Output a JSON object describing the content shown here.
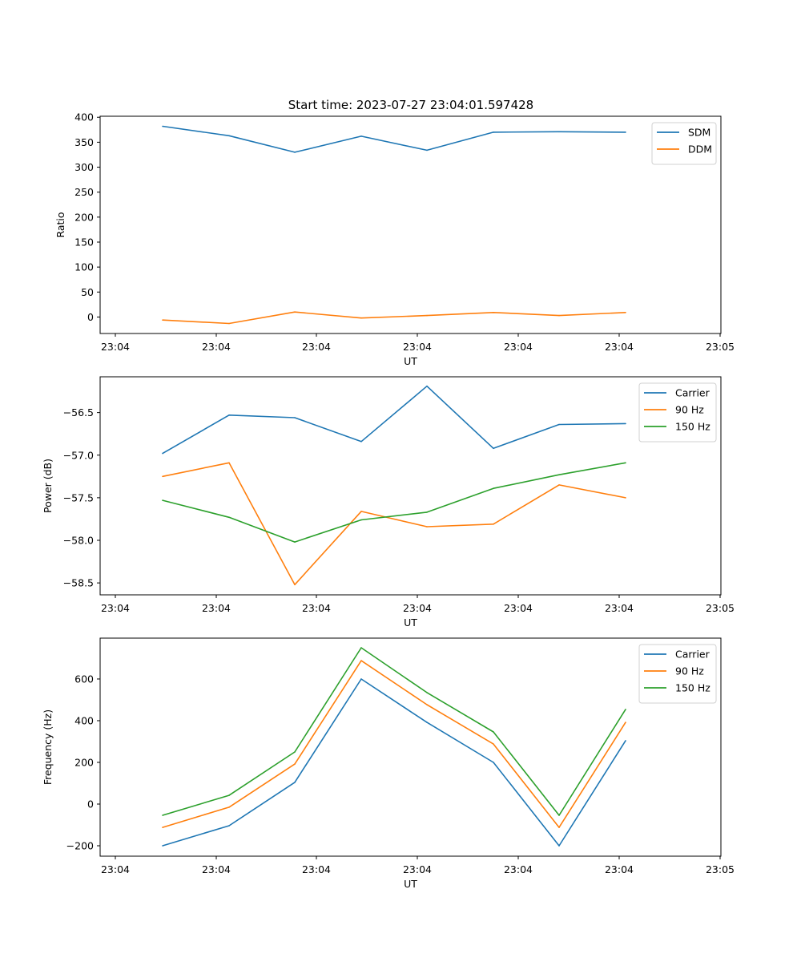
{
  "title": "Start time: 2023-07-27 23:04:01.597428",
  "chart_data": [
    {
      "type": "line",
      "title": "Start time: 2023-07-27 23:04:01.597428",
      "xlabel": "UT",
      "ylabel": "Ratio",
      "x_ticks": [
        "23:04",
        "23:04",
        "23:04",
        "23:04",
        "23:04",
        "23:04",
        "23:05"
      ],
      "y_ticks": [
        0,
        50,
        100,
        150,
        200,
        250,
        300,
        350,
        400
      ],
      "ylim": [
        -33,
        402
      ],
      "grid": false,
      "legend_position": "top-right",
      "series": [
        {
          "name": "SDM",
          "color": "#1f77b4",
          "values": [
            382,
            363,
            330,
            362,
            334,
            370,
            371,
            370
          ]
        },
        {
          "name": "DDM",
          "color": "#ff7f0e",
          "values": [
            -6,
            -13,
            10,
            -2,
            3,
            9,
            3,
            9
          ]
        }
      ]
    },
    {
      "type": "line",
      "title": "",
      "xlabel": "UT",
      "ylabel": "Power (dB)",
      "x_ticks": [
        "23:04",
        "23:04",
        "23:04",
        "23:04",
        "23:04",
        "23:04",
        "23:05"
      ],
      "y_ticks": [
        -58.5,
        -58.0,
        -57.5,
        -57.0,
        -56.5
      ],
      "y_tick_labels": [
        "−58.5",
        "−58.0",
        "−57.5",
        "−57.0",
        "−56.5"
      ],
      "ylim": [
        -58.64,
        -56.08
      ],
      "grid": false,
      "legend_position": "top-right",
      "series": [
        {
          "name": "Carrier",
          "color": "#1f77b4",
          "values": [
            -56.98,
            -56.53,
            -56.56,
            -56.84,
            -56.19,
            -56.92,
            -56.64,
            -56.63
          ]
        },
        {
          "name": "90 Hz",
          "color": "#ff7f0e",
          "values": [
            -57.25,
            -57.09,
            -58.52,
            -57.66,
            -57.84,
            -57.81,
            -57.35,
            -57.5
          ]
        },
        {
          "name": "150 Hz",
          "color": "#2ca02c",
          "values": [
            -57.53,
            -57.73,
            -58.02,
            -57.76,
            -57.67,
            -57.39,
            -57.23,
            -57.09
          ]
        }
      ]
    },
    {
      "type": "line",
      "title": "",
      "xlabel": "UT",
      "ylabel": "Frequency (Hz)",
      "x_ticks": [
        "23:04",
        "23:04",
        "23:04",
        "23:04",
        "23:04",
        "23:04",
        "23:05"
      ],
      "y_ticks": [
        -200,
        0,
        200,
        400,
        600
      ],
      "y_tick_labels": [
        "−200",
        "0",
        "200",
        "400",
        "600"
      ],
      "ylim": [
        -250,
        796
      ],
      "grid": false,
      "legend_position": "top-right",
      "series": [
        {
          "name": "Carrier",
          "color": "#1f77b4",
          "values": [
            -200,
            -104,
            104,
            600,
            392,
            200,
            -200,
            304
          ]
        },
        {
          "name": "90 Hz",
          "color": "#ff7f0e",
          "values": [
            -112,
            -15,
            192,
            688,
            477,
            288,
            -112,
            392
          ]
        },
        {
          "name": "150 Hz",
          "color": "#2ca02c",
          "values": [
            -54,
            42,
            250,
            750,
            535,
            346,
            -54,
            454
          ]
        }
      ]
    }
  ]
}
